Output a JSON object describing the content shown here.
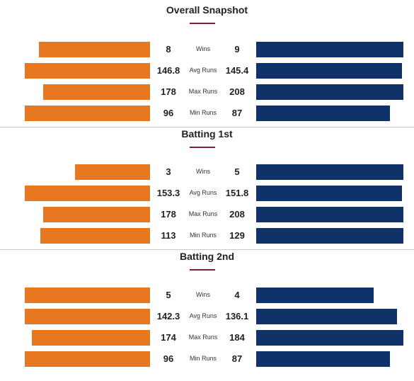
{
  "colors": {
    "team1": "#e87722",
    "team2": "#0f3369",
    "accent": "#7b1c3a"
  },
  "sections": [
    {
      "title": "Overall Snapshot",
      "rows": [
        {
          "metric": "Wins",
          "left": "8",
          "right": "9",
          "left_num": 8,
          "right_num": 9
        },
        {
          "metric": "Avg Runs",
          "left": "146.8",
          "right": "145.4",
          "left_num": 146.8,
          "right_num": 145.4
        },
        {
          "metric": "Max Runs",
          "left": "178",
          "right": "208",
          "left_num": 178,
          "right_num": 208
        },
        {
          "metric": "Min Runs",
          "left": "96",
          "right": "87",
          "left_num": 96,
          "right_num": 87
        }
      ]
    },
    {
      "title": "Batting 1st",
      "rows": [
        {
          "metric": "Wins",
          "left": "3",
          "right": "5",
          "left_num": 3,
          "right_num": 5
        },
        {
          "metric": "Avg Runs",
          "left": "153.3",
          "right": "151.8",
          "left_num": 153.3,
          "right_num": 151.8
        },
        {
          "metric": "Max Runs",
          "left": "178",
          "right": "208",
          "left_num": 178,
          "right_num": 208
        },
        {
          "metric": "Min Runs",
          "left": "113",
          "right": "129",
          "left_num": 113,
          "right_num": 129
        }
      ]
    },
    {
      "title": "Batting 2nd",
      "rows": [
        {
          "metric": "Wins",
          "left": "5",
          "right": "4",
          "left_num": 5,
          "right_num": 4
        },
        {
          "metric": "Avg Runs",
          "left": "142.3",
          "right": "136.1",
          "left_num": 142.3,
          "right_num": 136.1
        },
        {
          "metric": "Max Runs",
          "left": "174",
          "right": "184",
          "left_num": 174,
          "right_num": 184
        },
        {
          "metric": "Min Runs",
          "left": "96",
          "right": "87",
          "left_num": 96,
          "right_num": 87
        }
      ]
    }
  ]
}
